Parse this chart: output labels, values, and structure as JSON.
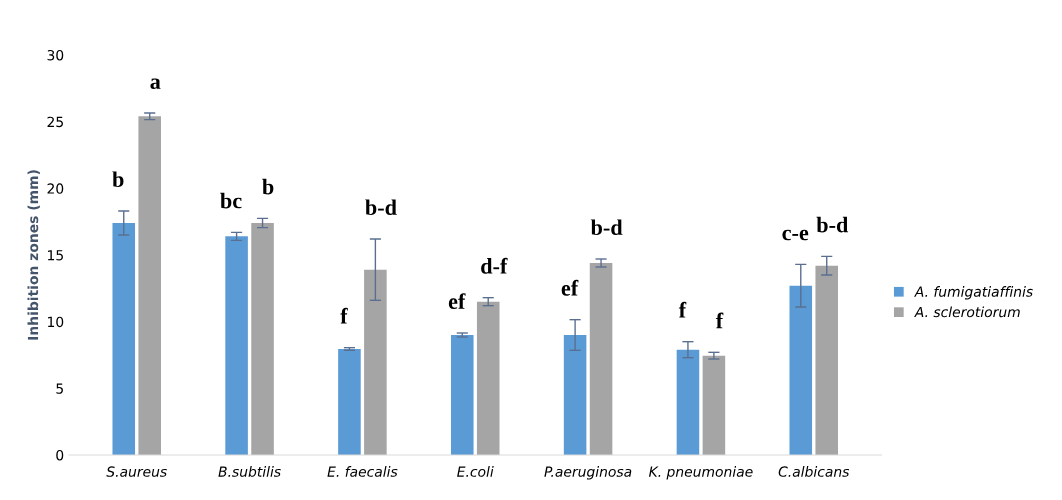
{
  "chart_data": {
    "type": "bar",
    "ylabel": "Inhibition zones (mm)",
    "categories": [
      "S.aureus",
      "B.subtilis",
      "E. faecalis",
      "E.coli",
      "P.aeruginosa",
      "K. pneumoniae",
      "C.albicans"
    ],
    "series": [
      {
        "name": "A. fumigatiaffinis",
        "color": "#5b9bd5",
        "values": [
          17.4,
          16.4,
          7.95,
          9.0,
          9.0,
          7.9,
          12.7
        ],
        "errors": [
          0.9,
          0.3,
          0.1,
          0.15,
          1.15,
          0.6,
          1.6
        ]
      },
      {
        "name": "A. sclerotiorum",
        "color": "#a5a5a5",
        "values": [
          25.4,
          17.4,
          13.9,
          11.5,
          14.4,
          7.45,
          14.2
        ],
        "errors": [
          0.25,
          0.35,
          2.3,
          0.3,
          0.3,
          0.25,
          0.7
        ]
      }
    ],
    "ylim": [
      0,
      30
    ],
    "yticks": [
      0,
      5,
      10,
      15,
      20,
      25,
      30
    ],
    "grid": false,
    "legend": "right",
    "annotations": [
      {
        "text": "b",
        "x": "S.aureus",
        "y": 17.4
      },
      {
        "text": "a",
        "x": "S.aureus",
        "y": 25.4
      },
      {
        "text": "bc",
        "x": "B.subtilis",
        "y": 16.4
      },
      {
        "text": "b",
        "x": "B.subtilis",
        "y": 17.4
      },
      {
        "text": "f",
        "x": "E. faecalis",
        "y": 7.95
      },
      {
        "text": "b-d",
        "x": "E. faecalis",
        "y": 13.9
      },
      {
        "text": "ef",
        "x": "E.coli",
        "y": 9.0
      },
      {
        "text": "d-f",
        "x": "E.coli",
        "y": 11.5
      },
      {
        "text": "ef",
        "x": "P.aeruginosa",
        "y": 9.0
      },
      {
        "text": "b-d",
        "x": "P.aeruginosa",
        "y": 14.4
      },
      {
        "text": "f",
        "x": "K. pneumoniae",
        "y": 7.9
      },
      {
        "text": "f",
        "x": "K. pneumoniae",
        "y": 7.45
      },
      {
        "text": "c-e",
        "x": "C.albicans",
        "y": 12.7
      },
      {
        "text": "b-d",
        "x": "C.albicans",
        "y": 14.2
      }
    ]
  }
}
